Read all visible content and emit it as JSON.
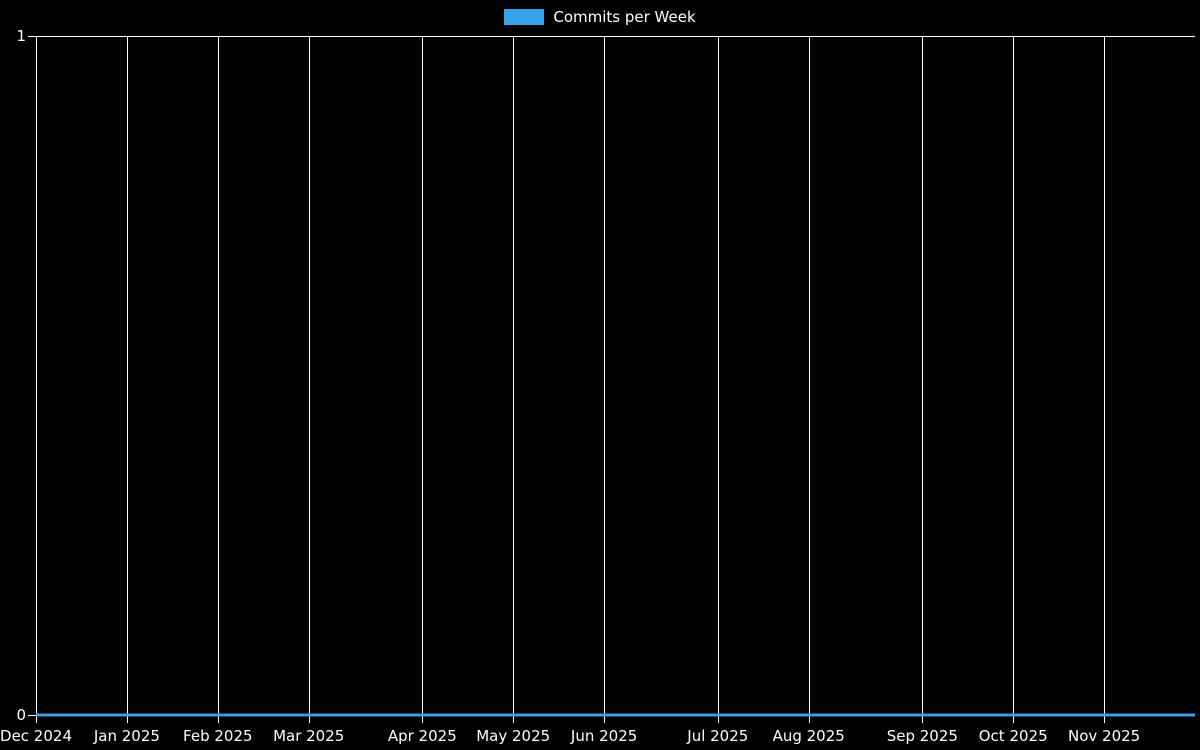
{
  "chart_data": {
    "type": "line",
    "title": "",
    "background": "#000000",
    "text_color": "#ffffff",
    "grid": {
      "vertical": true,
      "horizontal": false,
      "color": "#ffffff"
    },
    "legend": {
      "position": "top",
      "entries": [
        {
          "label": "Commits per Week",
          "color": "#36a2eb"
        }
      ]
    },
    "x_axis": {
      "unit": "week",
      "total_weeks": 52,
      "tick_labels": [
        "Dec 2024",
        "Jan 2025",
        "Feb 2025",
        "Mar 2025",
        "Apr 2025",
        "May 2025",
        "Jun 2025",
        "Jul 2025",
        "Aug 2025",
        "Sep 2025",
        "Oct 2025",
        "Nov 2025"
      ],
      "tick_week_offsets": [
        0,
        4,
        8,
        12,
        17,
        21,
        25,
        30,
        34,
        39,
        43,
        47
      ]
    },
    "y_axis": {
      "min": 0,
      "max": 1,
      "ticks": [
        0,
        1
      ],
      "tick_labels": [
        "0",
        "1"
      ]
    },
    "series": [
      {
        "name": "Commits per Week",
        "color": "#36a2eb",
        "line_width": 3,
        "values": [
          0,
          0,
          0,
          0,
          0,
          0,
          0,
          0,
          0,
          0,
          0,
          0,
          0,
          0,
          0,
          0,
          0,
          0,
          0,
          0,
          0,
          0,
          0,
          0,
          0,
          0,
          0,
          0,
          0,
          0,
          0,
          0,
          0,
          0,
          0,
          0,
          0,
          0,
          0,
          0,
          0,
          0,
          0,
          0,
          0,
          0,
          0,
          0,
          0,
          0,
          0,
          0
        ]
      }
    ]
  }
}
